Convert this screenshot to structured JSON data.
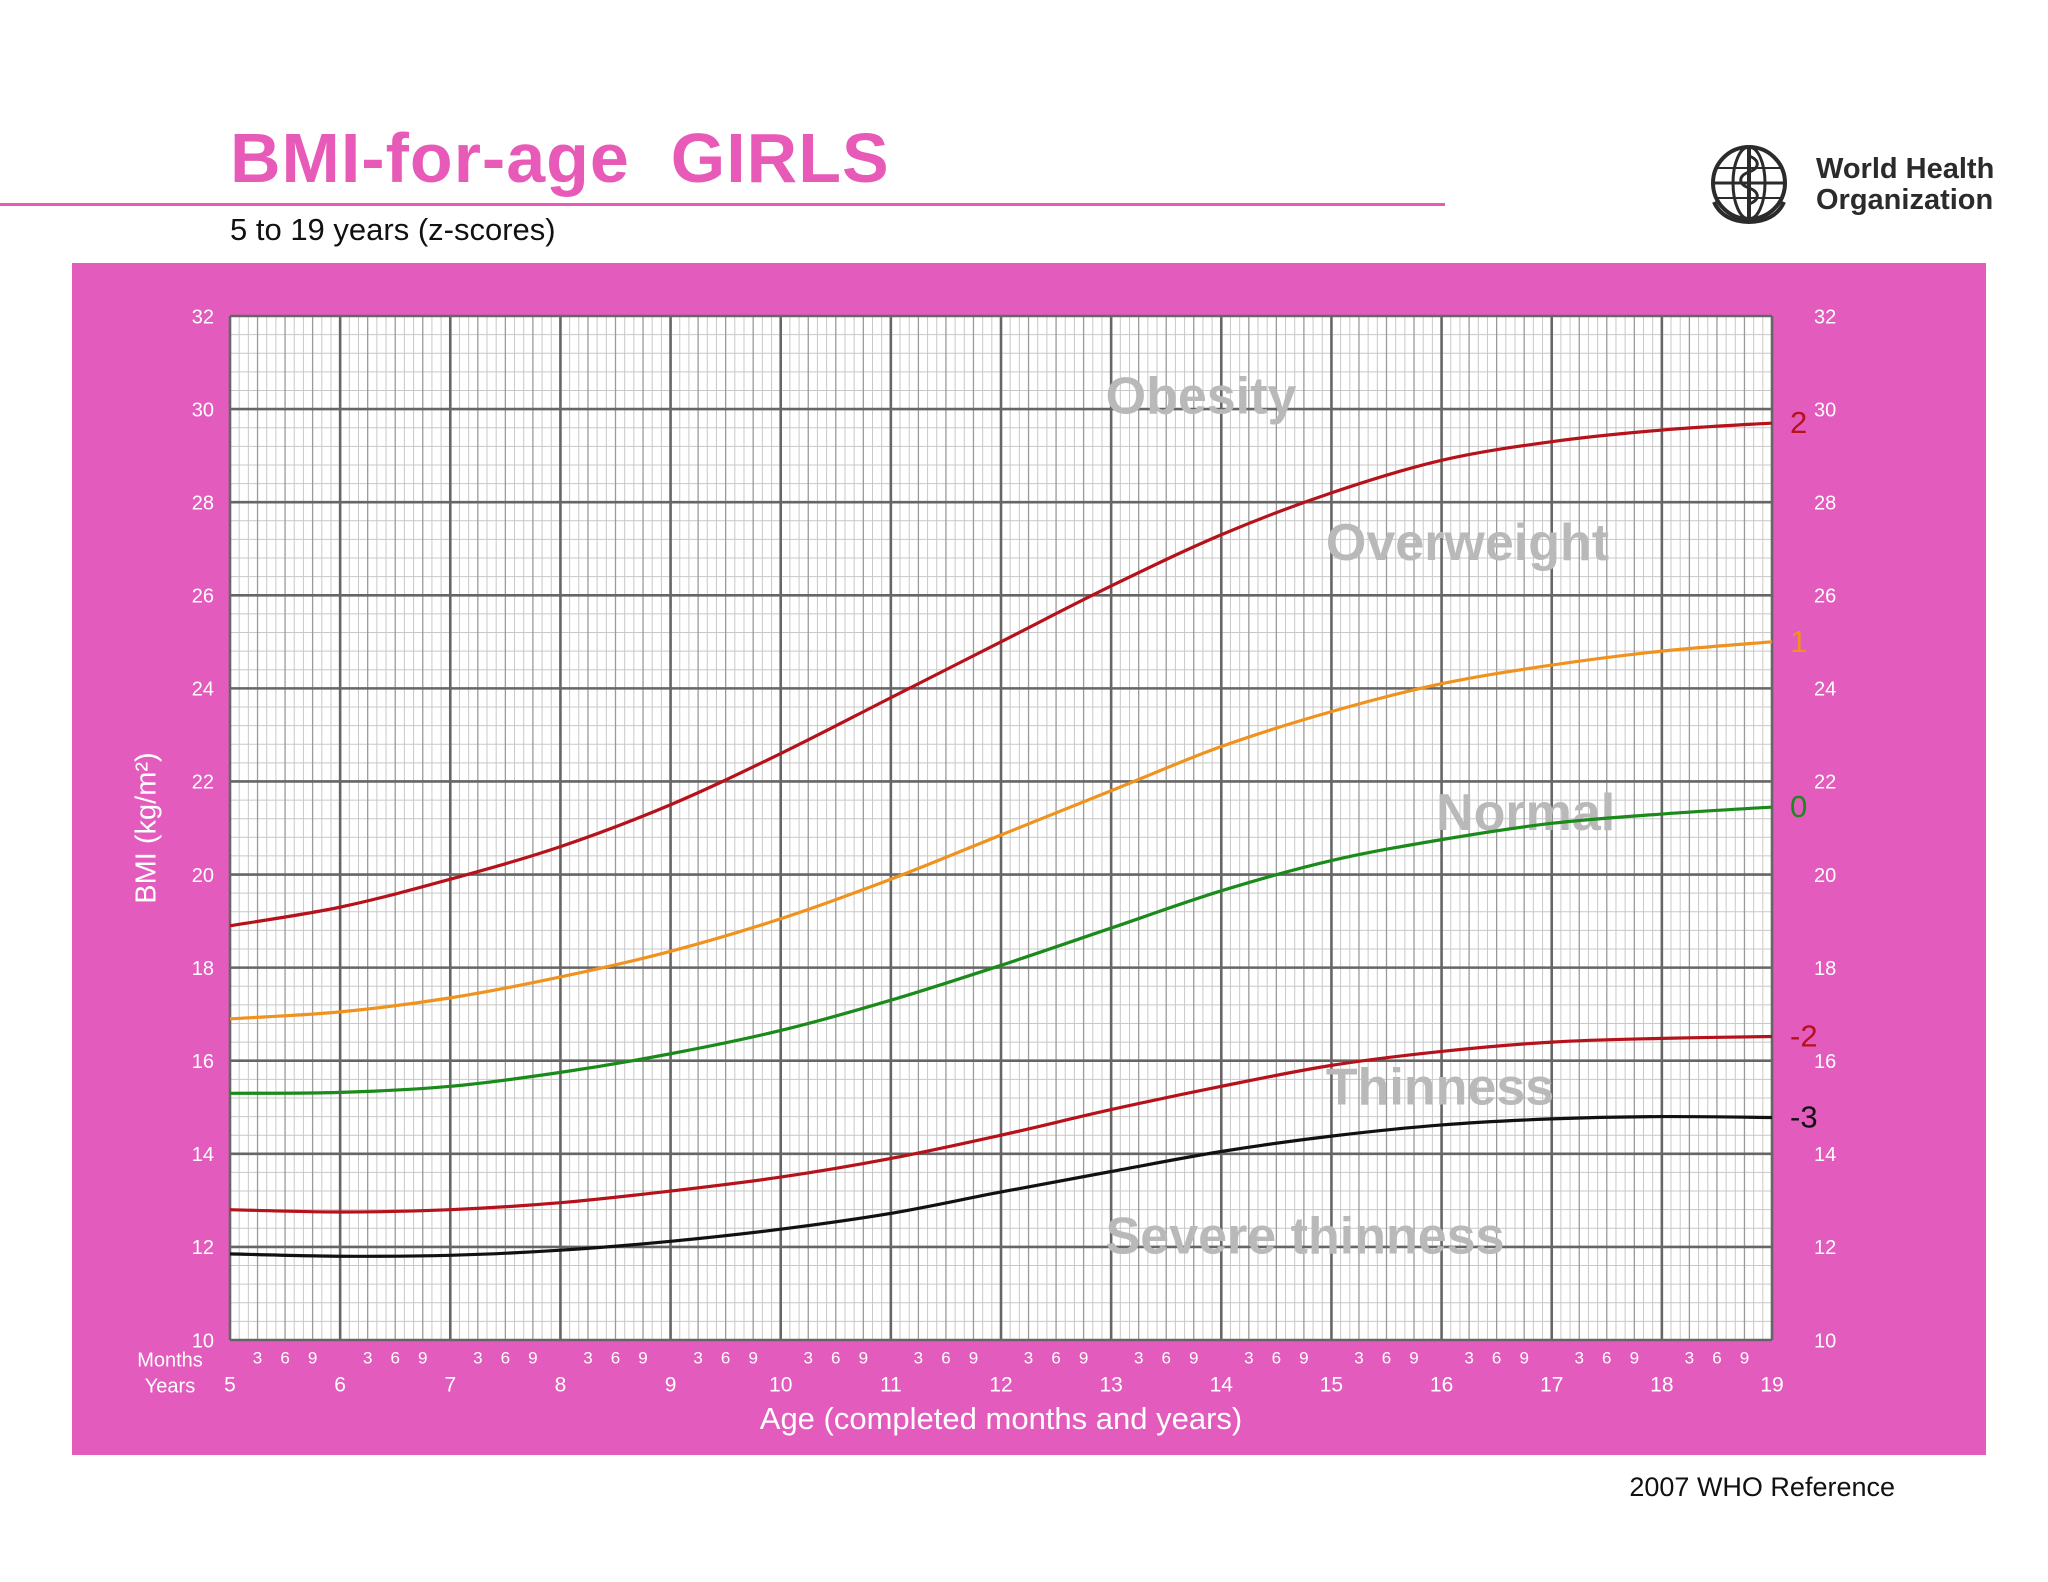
{
  "header": {
    "title": "BMI-for-age  GIRLS",
    "subtitle": "5 to 19 years (z-scores)"
  },
  "logo": {
    "name_line1": "World Health",
    "name_line2": "Organization",
    "icon": "who-emblem-icon"
  },
  "footer": {
    "reference": "2007 WHO Reference"
  },
  "colors": {
    "brand_pink": "#e85ab8",
    "panel_pink": "#e35bbd",
    "z2": "#b5121b",
    "z1": "#f0921e",
    "z0": "#1a8a1a",
    "zm2": "#b5121b",
    "zm3": "#111111",
    "zone_text": "#b9b9b9"
  },
  "chart_data": {
    "type": "line",
    "title": "BMI-for-age  GIRLS",
    "subtitle": "5 to 19 years (z-scores)",
    "xlabel": "Age (completed months and years)",
    "ylabel": "BMI (kg/m²)",
    "xlim": [
      5,
      19
    ],
    "ylim": [
      10,
      32
    ],
    "grid": true,
    "y_ticks": [
      10,
      12,
      14,
      16,
      18,
      20,
      22,
      24,
      26,
      28,
      30,
      32
    ],
    "x_year_ticks": [
      5,
      6,
      7,
      8,
      9,
      10,
      11,
      12,
      13,
      14,
      15,
      16,
      17,
      18,
      19
    ],
    "x_month_ticks": [
      "3",
      "6",
      "9"
    ],
    "row_labels": {
      "months": "Months",
      "years": "Years"
    },
    "zones": [
      {
        "label": "Obesity",
        "x": 12.95,
        "y": 30.2
      },
      {
        "label": "Overweight",
        "x": 14.95,
        "y": 27.05
      },
      {
        "label": "Normal",
        "x": 15.95,
        "y": 21.25
      },
      {
        "label": "Thinness",
        "x": 14.95,
        "y": 15.35
      },
      {
        "label": "Severe thinness",
        "x": 12.95,
        "y": 12.15
      }
    ],
    "series": [
      {
        "name": "2",
        "color": "#b5121b",
        "x": [
          5,
          6,
          7,
          8,
          9,
          10,
          11,
          12,
          13,
          14,
          15,
          16,
          17,
          18,
          19
        ],
        "y": [
          18.9,
          19.3,
          19.9,
          20.6,
          21.5,
          22.6,
          23.8,
          25.0,
          26.2,
          27.3,
          28.2,
          28.9,
          29.3,
          29.55,
          29.7
        ]
      },
      {
        "name": "1",
        "color": "#f0921e",
        "x": [
          5,
          6,
          7,
          8,
          9,
          10,
          11,
          12,
          13,
          14,
          15,
          16,
          17,
          18,
          19
        ],
        "y": [
          16.9,
          17.05,
          17.35,
          17.8,
          18.35,
          19.05,
          19.9,
          20.85,
          21.8,
          22.75,
          23.5,
          24.1,
          24.5,
          24.8,
          25.0
        ]
      },
      {
        "name": "0",
        "color": "#1a8a1a",
        "x": [
          5,
          6,
          7,
          8,
          9,
          10,
          11,
          12,
          13,
          14,
          15,
          16,
          17,
          18,
          19
        ],
        "y": [
          15.3,
          15.32,
          15.45,
          15.75,
          16.15,
          16.65,
          17.3,
          18.05,
          18.85,
          19.65,
          20.3,
          20.75,
          21.1,
          21.3,
          21.45
        ]
      },
      {
        "name": "-2",
        "color": "#b5121b",
        "x": [
          5,
          6,
          7,
          8,
          9,
          10,
          11,
          12,
          13,
          14,
          15,
          16,
          17,
          18,
          19
        ],
        "y": [
          12.8,
          12.75,
          12.8,
          12.95,
          13.2,
          13.5,
          13.9,
          14.4,
          14.95,
          15.45,
          15.9,
          16.2,
          16.4,
          16.48,
          16.52
        ]
      },
      {
        "name": "-3",
        "color": "#111111",
        "x": [
          5,
          6,
          7,
          8,
          9,
          10,
          11,
          12,
          13,
          14,
          15,
          16,
          17,
          18,
          19
        ],
        "y": [
          11.85,
          11.8,
          11.82,
          11.93,
          12.12,
          12.38,
          12.72,
          13.18,
          13.62,
          14.05,
          14.38,
          14.62,
          14.75,
          14.8,
          14.78
        ]
      }
    ]
  }
}
